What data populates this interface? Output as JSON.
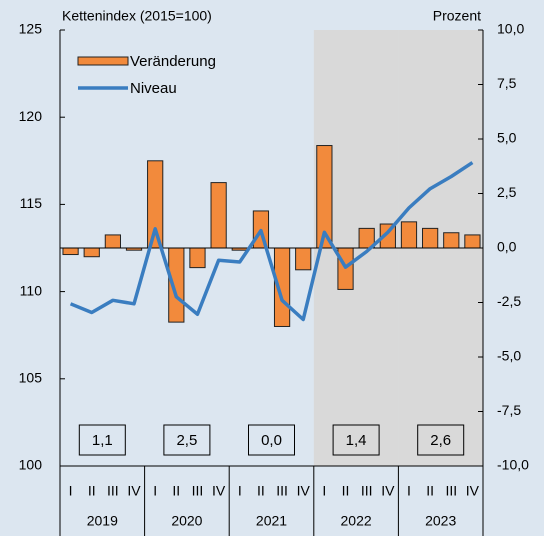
{
  "chart_data": {
    "type": "combo",
    "y_label": "Kettenindex (2015=100)",
    "y2_label": "Prozent",
    "categories": [
      "I",
      "II",
      "III",
      "IV",
      "I",
      "II",
      "III",
      "IV",
      "I",
      "II",
      "III",
      "IV",
      "I",
      "II",
      "III",
      "IV",
      "I",
      "II",
      "III",
      "IV"
    ],
    "years": [
      "2019",
      "2020",
      "2021",
      "2022",
      "2023"
    ],
    "shade_years": [
      "2022",
      "2023"
    ],
    "series": [
      {
        "name": "Veränderung",
        "type": "bar",
        "axis": "y2",
        "color": "#f28a3c",
        "values": [
          -0.3,
          -0.4,
          0.6,
          -0.1,
          4.0,
          -3.4,
          -0.9,
          3.0,
          -0.1,
          1.7,
          -3.6,
          -1.0,
          4.7,
          -1.9,
          0.9,
          1.1,
          1.2,
          0.9,
          0.7,
          0.6
        ]
      },
      {
        "name": "Niveau",
        "type": "line",
        "color": "#3a7dc0",
        "values": [
          109.3,
          108.8,
          109.5,
          109.3,
          113.6,
          109.7,
          108.7,
          111.8,
          111.7,
          113.5,
          109.5,
          108.4,
          113.4,
          111.4,
          112.3,
          113.4,
          114.8,
          115.9,
          116.6,
          117.4
        ]
      }
    ],
    "annual_changes": {
      "values": [
        1.1,
        2.5,
        0.0,
        1.4,
        2.6
      ],
      "value_labels": [
        "1,1",
        "2,5",
        "0,0",
        "1,4",
        "2,6"
      ]
    },
    "ylim": [
      100,
      125
    ],
    "yticks": [
      100,
      105,
      110,
      115,
      120,
      125
    ],
    "y2lim": [
      -10,
      10
    ],
    "y2ticks": [
      {
        "value": -10,
        "label": "-10,0"
      },
      {
        "value": -7.5,
        "label": "-7,5"
      },
      {
        "value": -5,
        "label": "-5,0"
      },
      {
        "value": -2.5,
        "label": "-2,5"
      },
      {
        "value": 0,
        "label": "0,0"
      },
      {
        "value": 2.5,
        "label": "2,5"
      },
      {
        "value": 5,
        "label": "5,0"
      },
      {
        "value": 7.5,
        "label": "7,5"
      },
      {
        "value": 10,
        "label": "10,0"
      }
    ],
    "legend": "upper left"
  }
}
